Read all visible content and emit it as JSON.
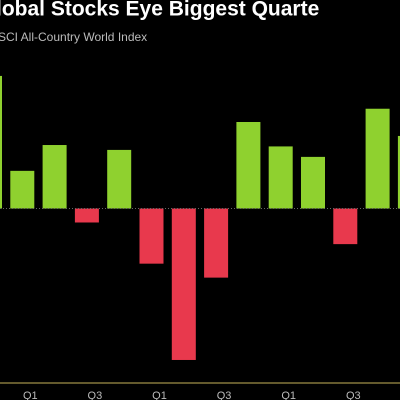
{
  "chart_data": {
    "type": "bar",
    "title": "lobal Stocks Eye Biggest Quarte",
    "subtitle": "SCI All-Country World Index",
    "categories": [
      null,
      "Q1",
      null,
      "Q3",
      null,
      "Q1",
      null,
      "Q3",
      null,
      "Q1",
      null,
      "Q3",
      null,
      null
    ],
    "values": [
      19,
      5.4,
      9.1,
      -2,
      8.4,
      -7.9,
      -21.7,
      -9.9,
      12.4,
      8.9,
      7.4,
      -5.1,
      14.3,
      10.4
    ],
    "positive_color": "#8fd12f",
    "negative_color": "#e8394d",
    "ylim": [
      -25,
      22
    ]
  }
}
